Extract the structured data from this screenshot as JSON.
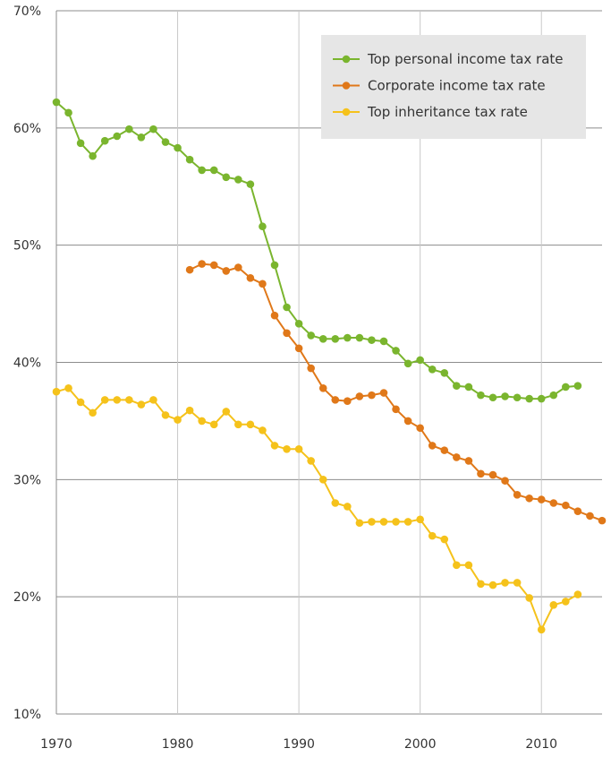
{
  "chart_data": {
    "type": "line",
    "title": "",
    "xlabel": "",
    "ylabel": "",
    "xlim": [
      1970,
      2015
    ],
    "ylim": [
      10,
      70
    ],
    "x_ticks": [
      1970,
      1980,
      1990,
      2000,
      2010
    ],
    "x_tick_labels": [
      "1970",
      "1980",
      "1990",
      "2000",
      "2010"
    ],
    "y_ticks": [
      10,
      20,
      30,
      40,
      50,
      60,
      70
    ],
    "y_tick_labels": [
      "10%",
      "20%",
      "30%",
      "40%",
      "50%",
      "60%",
      "70%"
    ],
    "grid": true,
    "legend_position": "top-right",
    "series": [
      {
        "name": "Top personal income tax rate",
        "color": "#7ab52e",
        "x": [
          1970,
          1971,
          1972,
          1973,
          1974,
          1975,
          1976,
          1977,
          1978,
          1979,
          1980,
          1981,
          1982,
          1983,
          1984,
          1985,
          1986,
          1987,
          1988,
          1989,
          1990,
          1991,
          1992,
          1993,
          1994,
          1995,
          1996,
          1997,
          1998,
          1999,
          2000,
          2001,
          2002,
          2003,
          2004,
          2005,
          2006,
          2007,
          2008,
          2009,
          2010,
          2011,
          2012,
          2013
        ],
        "values": [
          62.2,
          61.3,
          58.7,
          57.6,
          58.9,
          59.3,
          59.9,
          59.2,
          59.9,
          58.8,
          58.3,
          57.3,
          56.4,
          56.4,
          55.8,
          55.6,
          55.2,
          51.6,
          48.3,
          44.7,
          43.3,
          42.3,
          42.0,
          42.0,
          42.1,
          42.1,
          41.9,
          41.8,
          41.0,
          39.9,
          40.2,
          39.4,
          39.1,
          38.0,
          37.9,
          37.2,
          37.0,
          37.1,
          37.0,
          36.9,
          36.9,
          37.2,
          37.9,
          38.0
        ]
      },
      {
        "name": "Corporate income tax rate",
        "color": "#e07819",
        "x": [
          1981,
          1982,
          1983,
          1984,
          1985,
          1986,
          1987,
          1988,
          1989,
          1990,
          1991,
          1992,
          1993,
          1994,
          1995,
          1996,
          1997,
          1998,
          1999,
          2000,
          2001,
          2002,
          2003,
          2004,
          2005,
          2006,
          2007,
          2008,
          2009,
          2010,
          2011,
          2012,
          2013,
          2014,
          2015
        ],
        "values": [
          47.9,
          48.4,
          48.3,
          47.8,
          48.1,
          47.2,
          46.7,
          44.0,
          42.5,
          41.2,
          39.5,
          37.8,
          36.8,
          36.7,
          37.1,
          37.2,
          37.4,
          36.0,
          35.0,
          34.4,
          32.9,
          32.5,
          31.9,
          31.6,
          30.5,
          30.4,
          29.9,
          28.7,
          28.4,
          28.3,
          28.0,
          27.8,
          27.3,
          26.9,
          26.5
        ]
      },
      {
        "name": "Top inheritance tax rate",
        "color": "#f5c21b",
        "x": [
          1970,
          1971,
          1972,
          1973,
          1974,
          1975,
          1976,
          1977,
          1978,
          1979,
          1980,
          1981,
          1982,
          1983,
          1984,
          1985,
          1986,
          1987,
          1988,
          1989,
          1990,
          1991,
          1992,
          1993,
          1994,
          1995,
          1996,
          1997,
          1998,
          1999,
          2000,
          2001,
          2002,
          2003,
          2004,
          2005,
          2006,
          2007,
          2008,
          2009,
          2010,
          2011,
          2012,
          2013
        ],
        "values": [
          37.5,
          37.8,
          36.6,
          35.7,
          36.8,
          36.8,
          36.8,
          36.4,
          36.8,
          35.5,
          35.1,
          35.9,
          35.0,
          34.7,
          35.8,
          34.7,
          34.7,
          34.2,
          32.9,
          32.6,
          32.6,
          31.6,
          30.0,
          28.0,
          27.7,
          26.3,
          26.4,
          26.4,
          26.4,
          26.4,
          26.6,
          25.2,
          24.9,
          22.7,
          22.7,
          21.1,
          21.0,
          21.2,
          21.2,
          19.9,
          17.2,
          19.3,
          19.6,
          20.2
        ]
      }
    ]
  }
}
